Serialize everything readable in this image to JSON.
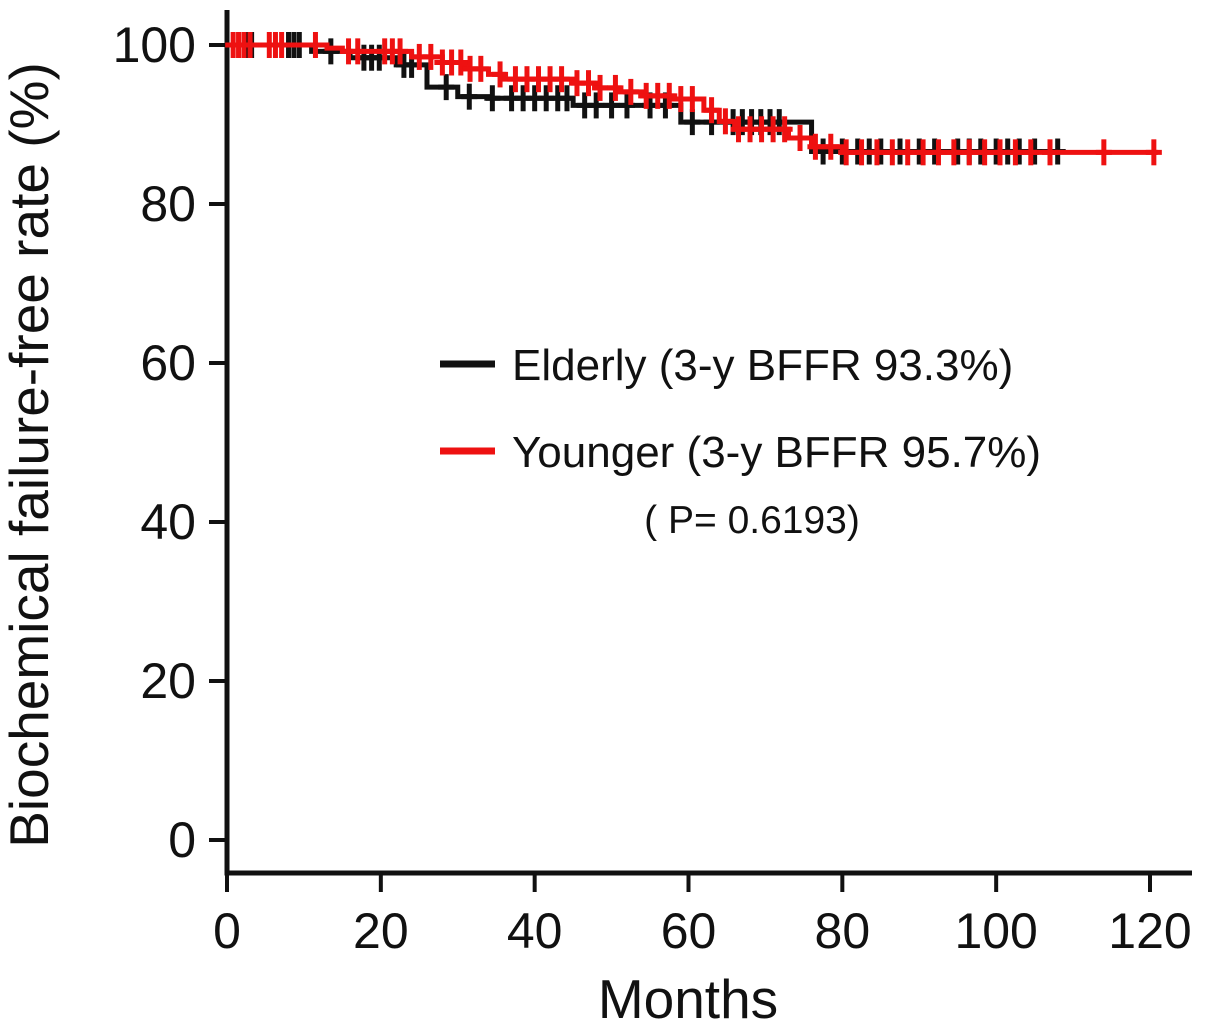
{
  "figure": {
    "background": "#ffffff",
    "p_value_text": "( P= 0.6193)"
  },
  "legend": {
    "items": [
      {
        "label": "Elderly (3-y BFFR 93.3%)",
        "color": "#111111"
      },
      {
        "label": "Younger (3-y BFFR 95.7%)",
        "color": "#ee1111"
      }
    ]
  },
  "chart_data": {
    "type": "line",
    "subtype": "kaplan-meier-step",
    "title": "",
    "xlabel": "Months",
    "ylabel": "Biochemical failure-free rate (%)",
    "xlim": [
      0,
      124
    ],
    "ylim": [
      0,
      100
    ],
    "x_ticks": [
      0,
      20,
      40,
      60,
      80,
      100,
      120
    ],
    "y_ticks": [
      0,
      20,
      40,
      60,
      80,
      100
    ],
    "grid": false,
    "legend_position": "center",
    "annotation": "( P= 0.6193)",
    "axis_color": "#111111",
    "series": [
      {
        "name": "Elderly (3-y BFFR 93.3%)",
        "color": "#111111",
        "three_year_bffr_pct": 93.3,
        "steps": [
          [
            0,
            100
          ],
          [
            11,
            99.2
          ],
          [
            16,
            98.4
          ],
          [
            22,
            97.5
          ],
          [
            26,
            94.7
          ],
          [
            30,
            93.5
          ],
          [
            34,
            93.3
          ],
          [
            45,
            92.4
          ],
          [
            59,
            90.3
          ],
          [
            76,
            86.6
          ],
          [
            109,
            86.6
          ]
        ],
        "censors": [
          2.6,
          3.2,
          8.0,
          8.7,
          9.4,
          13.5,
          17.8,
          18.8,
          19.8,
          23.0,
          24.0,
          28.5,
          31.5,
          34.5,
          37.0,
          38.5,
          40.0,
          41.5,
          43.0,
          44.2,
          46.5,
          48.0,
          50.0,
          52.0,
          55.0,
          57.0,
          60.5,
          63.0,
          65.8,
          67.0,
          68.2,
          69.4,
          70.6,
          71.8,
          77.5,
          80.0,
          82.0,
          83.5,
          85.0,
          87.5,
          90.0,
          92.0,
          95.0,
          96.5,
          98.0,
          100.0,
          101.5,
          103.0,
          105.0,
          108.0
        ]
      },
      {
        "name": "Younger (3-y BFFR 95.7%)",
        "color": "#ee1111",
        "three_year_bffr_pct": 95.7,
        "steps": [
          [
            0,
            100
          ],
          [
            13,
            99.6
          ],
          [
            15,
            99.2
          ],
          [
            24,
            98.5
          ],
          [
            28,
            97.8
          ],
          [
            31,
            97.0
          ],
          [
            34,
            96.3
          ],
          [
            36,
            95.7
          ],
          [
            45,
            95.2
          ],
          [
            48,
            94.6
          ],
          [
            51,
            94.1
          ],
          [
            54,
            93.6
          ],
          [
            58,
            93.2
          ],
          [
            62,
            91.8
          ],
          [
            64,
            90.4
          ],
          [
            66,
            89.4
          ],
          [
            73,
            88.3
          ],
          [
            76,
            87.2
          ],
          [
            80,
            86.5
          ],
          [
            121,
            86.5
          ]
        ],
        "censors": [
          0.8,
          1.5,
          2.2,
          3.0,
          5.5,
          6.3,
          7.1,
          11.5,
          15.8,
          17.0,
          20.5,
          21.5,
          22.5,
          25.0,
          26.5,
          28.0,
          29.2,
          30.4,
          31.6,
          33.0,
          35.5,
          37.5,
          39.0,
          40.5,
          42.0,
          43.5,
          45.5,
          47.0,
          48.5,
          50.5,
          52.5,
          54.5,
          56.0,
          57.5,
          59.0,
          60.5,
          63.0,
          64.8,
          66.5,
          68.0,
          69.5,
          71.0,
          72.5,
          74.5,
          76.5,
          78.5,
          80.5,
          82.5,
          84.5,
          86.5,
          88.5,
          90.5,
          92.5,
          94.5,
          96.5,
          98.5,
          100.5,
          102.5,
          104.5,
          107.0,
          114.0,
          120.5
        ]
      }
    ]
  }
}
